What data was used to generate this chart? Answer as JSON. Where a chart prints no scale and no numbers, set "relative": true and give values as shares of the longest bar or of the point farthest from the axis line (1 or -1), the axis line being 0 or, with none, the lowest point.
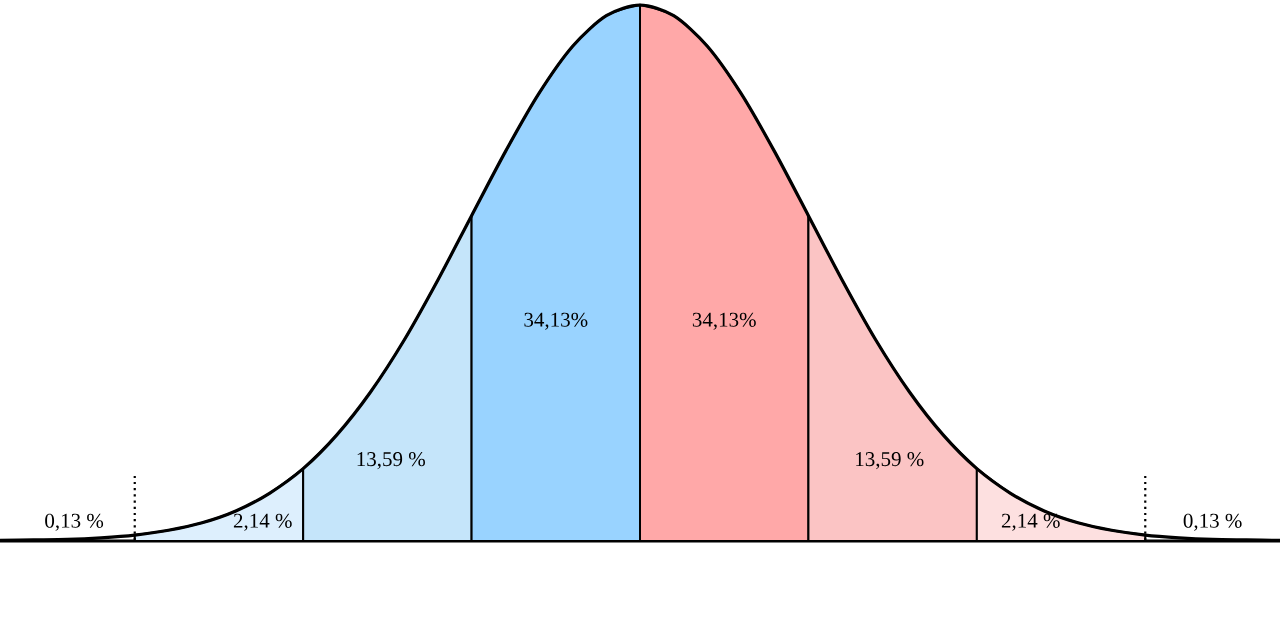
{
  "chart_data": {
    "type": "area",
    "relative": true,
    "categories": [
      null,
      null,
      null,
      null,
      null,
      null,
      null,
      null,
      null,
      null,
      null,
      null,
      null,
      null,
      null,
      null,
      null,
      null,
      null,
      null,
      null,
      null,
      null,
      null,
      null,
      null,
      null,
      null,
      null,
      null,
      null,
      null,
      null,
      null,
      null,
      null,
      null,
      null,
      null
    ],
    "series": [
      {
        "color": "#ddeffd",
        "values": [
          null,
          null,
          null,
          null,
          0.011,
          0.02,
          0.034,
          0.056,
          0.089,
          0.135,
          null,
          null,
          null,
          null,
          null,
          null,
          null,
          null,
          null,
          null,
          null,
          null,
          null,
          null,
          null,
          null,
          null,
          null,
          null,
          null,
          null,
          null,
          null,
          null,
          null,
          null,
          null,
          null,
          null
        ]
      },
      {
        "color": "#c5e5fa",
        "values": [
          null,
          null,
          null,
          null,
          null,
          null,
          null,
          null,
          null,
          0.135,
          0.198,
          0.278,
          0.375,
          0.487,
          0.607,
          null,
          null,
          null,
          null,
          null,
          null,
          null,
          null,
          null,
          null,
          null,
          null,
          null,
          null,
          null,
          null,
          null,
          null,
          null,
          null,
          null,
          null,
          null,
          null
        ]
      },
      {
        "color": "#99d3ff",
        "values": [
          null,
          null,
          null,
          null,
          null,
          null,
          null,
          null,
          null,
          null,
          null,
          null,
          null,
          null,
          0.607,
          0.726,
          0.835,
          0.923,
          0.98,
          1,
          null,
          null,
          null,
          null,
          null,
          null,
          null,
          null,
          null,
          null,
          null,
          null,
          null,
          null,
          null,
          null,
          null,
          null,
          null
        ]
      },
      {
        "color": "#ffa8a8",
        "values": [
          null,
          null,
          null,
          null,
          null,
          null,
          null,
          null,
          null,
          null,
          null,
          null,
          null,
          null,
          null,
          null,
          null,
          null,
          null,
          1,
          0.98,
          0.923,
          0.835,
          0.726,
          0.607,
          null,
          null,
          null,
          null,
          null,
          null,
          null,
          null,
          null,
          null,
          null,
          null,
          null,
          null
        ]
      },
      {
        "color": "#fbc4c4",
        "values": [
          null,
          null,
          null,
          null,
          null,
          null,
          null,
          null,
          null,
          null,
          null,
          null,
          null,
          null,
          null,
          null,
          null,
          null,
          null,
          null,
          null,
          null,
          null,
          null,
          0.607,
          0.487,
          0.375,
          0.278,
          0.198,
          0.135,
          null,
          null,
          null,
          null,
          null,
          null,
          null,
          null,
          null
        ]
      },
      {
        "color": "#fde0e0",
        "values": [
          null,
          null,
          null,
          null,
          null,
          null,
          null,
          null,
          null,
          null,
          null,
          null,
          null,
          null,
          null,
          null,
          null,
          null,
          null,
          null,
          null,
          null,
          null,
          null,
          null,
          null,
          null,
          null,
          null,
          0.135,
          0.089,
          0.056,
          0.034,
          0.02,
          0.011,
          null,
          null,
          null,
          null
        ]
      },
      {
        "type": "line",
        "color": "#000000",
        "values": [
          0.001,
          0.002,
          0.003,
          0.006,
          0.011,
          0.02,
          0.034,
          0.056,
          0.089,
          0.135,
          0.198,
          0.278,
          0.375,
          0.487,
          0.607,
          0.726,
          0.835,
          0.923,
          0.98,
          1,
          0.98,
          0.923,
          0.835,
          0.726,
          0.607,
          0.487,
          0.375,
          0.278,
          0.198,
          0.135,
          0.089,
          0.056,
          0.034,
          0.02,
          0.011,
          0.006,
          0.003,
          0.002,
          0.001
        ]
      }
    ],
    "annotations": [
      "0,13 %",
      "2,14 %",
      "13,59 %",
      "34,13%",
      "34,13%",
      "13,59 %",
      "2,14 %",
      "0,13 %"
    ]
  }
}
